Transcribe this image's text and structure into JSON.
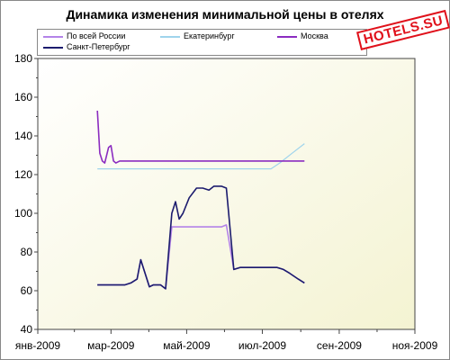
{
  "chart_data": {
    "type": "line",
    "title": "Динамика изменения минимальной цены в отелях",
    "xlabel": "",
    "ylabel": "",
    "x_ticks": [
      "янв-2009",
      "мар-2009",
      "май-2009",
      "июл-2009",
      "сен-2009",
      "ноя-2009"
    ],
    "x_range_days": [
      0,
      304
    ],
    "ylim": [
      40,
      180
    ],
    "y_ticks": [
      40,
      60,
      80,
      100,
      120,
      140,
      160,
      180
    ],
    "legend_position": "top",
    "grid": false,
    "series": [
      {
        "name": "По всей России",
        "color": "#b383e8",
        "points": [
          [
            48,
            63
          ],
          [
            70,
            63
          ],
          [
            75,
            64
          ],
          [
            80,
            66
          ],
          [
            83,
            76
          ],
          [
            86,
            70
          ],
          [
            90,
            62
          ],
          [
            93,
            63
          ],
          [
            99,
            63
          ],
          [
            103,
            61
          ],
          [
            108,
            93
          ],
          [
            112,
            93
          ],
          [
            130,
            93
          ],
          [
            148,
            93
          ],
          [
            152,
            94
          ],
          [
            158,
            71
          ],
          [
            163,
            72
          ],
          [
            173,
            72
          ],
          [
            183,
            72
          ],
          [
            193,
            72
          ],
          [
            198,
            71
          ],
          [
            203,
            69
          ],
          [
            210,
            66
          ],
          [
            215,
            64
          ]
        ]
      },
      {
        "name": "Екатеринбург",
        "color": "#9fd4ec",
        "points": [
          [
            48,
            123
          ],
          [
            100,
            123
          ],
          [
            150,
            123
          ],
          [
            185,
            123
          ],
          [
            188,
            123
          ],
          [
            195,
            126
          ],
          [
            205,
            131
          ],
          [
            215,
            136
          ]
        ]
      },
      {
        "name": "Москва",
        "color": "#8b2cc0",
        "points": [
          [
            48,
            153
          ],
          [
            50,
            131
          ],
          [
            52,
            127
          ],
          [
            54,
            126
          ],
          [
            57,
            134
          ],
          [
            59,
            135
          ],
          [
            61,
            127
          ],
          [
            63,
            126
          ],
          [
            66,
            127
          ],
          [
            215,
            127
          ]
        ]
      },
      {
        "name": "Санкт-Петербург",
        "color": "#1c1c6e",
        "points": [
          [
            48,
            63
          ],
          [
            70,
            63
          ],
          [
            75,
            64
          ],
          [
            80,
            66
          ],
          [
            83,
            76
          ],
          [
            86,
            70
          ],
          [
            90,
            62
          ],
          [
            93,
            63
          ],
          [
            99,
            63
          ],
          [
            103,
            61
          ],
          [
            108,
            100
          ],
          [
            111,
            106
          ],
          [
            114,
            97
          ],
          [
            117,
            100
          ],
          [
            122,
            108
          ],
          [
            128,
            113
          ],
          [
            133,
            113
          ],
          [
            138,
            112
          ],
          [
            142,
            114
          ],
          [
            148,
            114
          ],
          [
            152,
            113
          ],
          [
            158,
            71
          ],
          [
            163,
            72
          ],
          [
            173,
            72
          ],
          [
            183,
            72
          ],
          [
            193,
            72
          ],
          [
            198,
            71
          ],
          [
            203,
            69
          ],
          [
            210,
            66
          ],
          [
            215,
            64
          ]
        ]
      }
    ]
  },
  "legend": {
    "items": [
      "По всей России",
      "Екатеринбург",
      "Москва",
      "Санкт-Петербург"
    ]
  },
  "watermark": {
    "text": "HOTELS.SU"
  },
  "colors": {
    "plot_bg_light": "#ffffff",
    "plot_bg_dark": "#f4f3d2"
  }
}
